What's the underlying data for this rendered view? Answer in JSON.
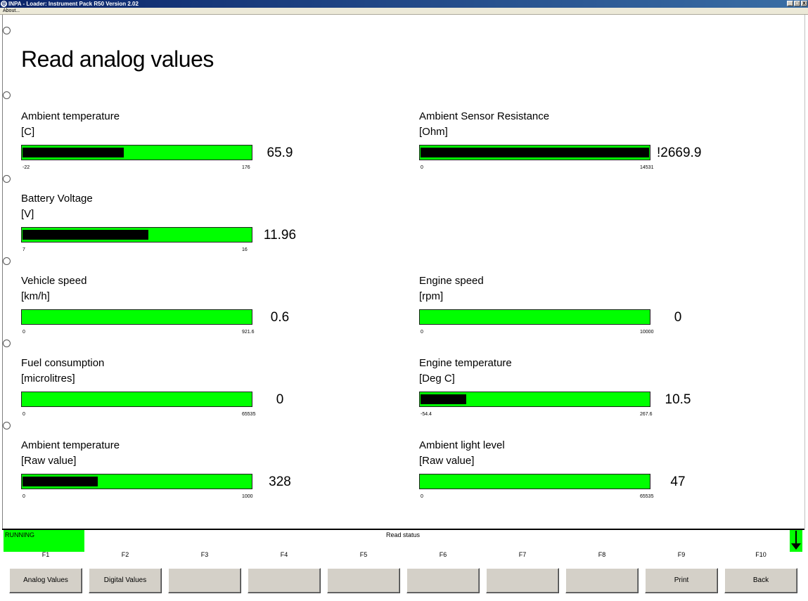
{
  "window": {
    "title": "INPA - Loader: Instrument Pack R50 Version 2.02",
    "controls": [
      "_",
      "□",
      "X"
    ]
  },
  "menu": {
    "about": "About..."
  },
  "page_title": "Read analog values",
  "gauges": [
    {
      "label": "Ambient temperature",
      "unit": "[C]",
      "value": "65.9",
      "min": "-22",
      "max": "176",
      "fill_fraction": 0.443
    },
    {
      "label": "Ambient Sensor Resistance",
      "unit": "[Ohm]",
      "value": "!2669.9",
      "min": "0",
      "max": "14531",
      "fill_fraction": 1.0
    },
    {
      "label": "Battery Voltage",
      "unit": "[V]",
      "value": "11.96",
      "min": "7",
      "max": "16",
      "fill_fraction": 0.551
    },
    {
      "label": "Vehicle speed",
      "unit": "[km/h]",
      "value": "0.6",
      "min": "0",
      "max": "921.6",
      "fill_fraction": 0.0
    },
    {
      "label": "Engine speed",
      "unit": "[rpm]",
      "value": "0",
      "min": "0",
      "max": "10000",
      "fill_fraction": 0.0
    },
    {
      "label": "Fuel consumption",
      "unit": "[microlitres]",
      "value": "0",
      "min": "0",
      "max": "65535",
      "fill_fraction": 0.0
    },
    {
      "label": "Engine temperature",
      "unit": "[Deg C]",
      "value": "10.5",
      "min": "-54.4",
      "max": "267.6",
      "fill_fraction": 0.2
    },
    {
      "label": "Ambient temperature",
      "unit": "[Raw value]",
      "value": "328",
      "min": "0",
      "max": "1000",
      "fill_fraction": 0.328
    },
    {
      "label": "Ambient light level",
      "unit": "[Raw value]",
      "value": "47",
      "min": "0",
      "max": "65535",
      "fill_fraction": 0.0
    }
  ],
  "status": {
    "state": "RUNNING",
    "center": "Read status"
  },
  "function_keys": [
    {
      "key": "F1",
      "label": "Analog Values"
    },
    {
      "key": "F2",
      "label": "Digital Values"
    },
    {
      "key": "F3",
      "label": ""
    },
    {
      "key": "F4",
      "label": ""
    },
    {
      "key": "F5",
      "label": ""
    },
    {
      "key": "F6",
      "label": ""
    },
    {
      "key": "F7",
      "label": ""
    },
    {
      "key": "F8",
      "label": ""
    },
    {
      "key": "F9",
      "label": "Print"
    },
    {
      "key": "F10",
      "label": "Back"
    }
  ],
  "colors": {
    "bar": "#00ff00",
    "fill": "#000000",
    "status": "#00ff00",
    "button": "#d4d0c8"
  }
}
